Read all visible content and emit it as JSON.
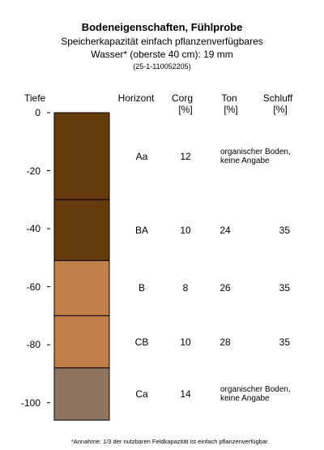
{
  "title": "Bodeneigenschaften, Fühlprobe",
  "subtitle_line1": "Speicherkapazität einfach pflanzenverfügbares",
  "subtitle_line2": "Wasser* (oberste 40 cm): 19 mm",
  "doc_id": "(25-1-110052205)",
  "columns": {
    "tiefe": "Tiefe",
    "horizont": "Horizont",
    "corg": "Corg",
    "corg_unit": "[%]",
    "ton": "Ton",
    "ton_unit": "[%]",
    "schluff": "Schluff",
    "schluff_unit": "[%]"
  },
  "depth_ticks": [
    "0",
    "-20",
    "-40",
    "-60",
    "-80",
    "-100"
  ],
  "layers": [
    {
      "horizont": "Aa",
      "top_cm": 0,
      "bottom_cm": 30,
      "color": "#673A0E",
      "corg": "12",
      "ton": "",
      "schluff": "",
      "note_line1": "organischer Boden,",
      "note_line2": "keine Angabe"
    },
    {
      "horizont": "BA",
      "top_cm": 30,
      "bottom_cm": 51,
      "color": "#673A0E",
      "corg": "10",
      "ton": "24",
      "schluff": "35",
      "note_line1": "",
      "note_line2": ""
    },
    {
      "horizont": "B",
      "top_cm": 51,
      "bottom_cm": 70,
      "color": "#C07E48",
      "corg": "8",
      "ton": "26",
      "schluff": "35",
      "note_line1": "",
      "note_line2": ""
    },
    {
      "horizont": "CB",
      "top_cm": 70,
      "bottom_cm": 88,
      "color": "#C07E48",
      "corg": "10",
      "ton": "28",
      "schluff": "35",
      "note_line1": "",
      "note_line2": ""
    },
    {
      "horizont": "Ca",
      "top_cm": 88,
      "bottom_cm": 106,
      "color": "#8E7461",
      "corg": "14",
      "ton": "",
      "schluff": "",
      "note_line1": "organischer Boden,",
      "note_line2": "keine Angabe"
    }
  ],
  "footnote": "*Annahme: 1/3 der nutzbaren Feldkapazität ist einfach pflanzenverfügbar."
}
